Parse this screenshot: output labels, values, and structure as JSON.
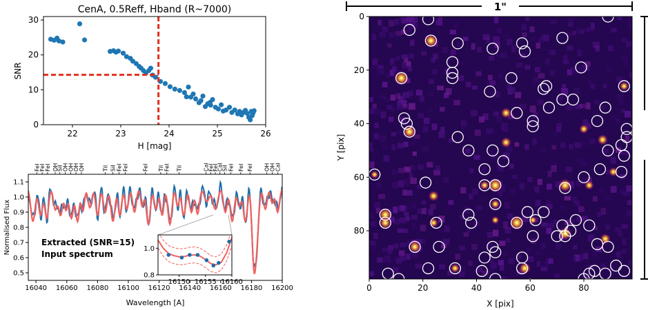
{
  "chart_data": [
    {
      "type": "scatter",
      "title": "CenA, 0.5Reff, Hband (R~7000)",
      "xlabel": "H [mag]",
      "ylabel": "SNR",
      "xlim": [
        21.4,
        26.0
      ],
      "ylim": [
        0,
        31
      ],
      "xticks": [
        "22",
        "23",
        "24",
        "25",
        "26"
      ],
      "yticks": [
        "0",
        "10",
        "20",
        "30"
      ],
      "series": [
        {
          "color": "#1f77b4",
          "points": [
            [
              21.55,
              24.5
            ],
            [
              21.62,
              24.2
            ],
            [
              21.68,
              24.8
            ],
            [
              21.72,
              24.0
            ],
            [
              21.8,
              23.7
            ],
            [
              22.15,
              28.9
            ],
            [
              22.25,
              24.3
            ],
            [
              22.78,
              21.0
            ],
            [
              22.85,
              21.2
            ],
            [
              22.9,
              20.8
            ],
            [
              22.95,
              21.1
            ],
            [
              23.05,
              20.5
            ],
            [
              23.12,
              19.5
            ],
            [
              23.2,
              19.0
            ],
            [
              23.25,
              18.2
            ],
            [
              23.32,
              17.5
            ],
            [
              23.38,
              16.7
            ],
            [
              23.42,
              16.2
            ],
            [
              23.47,
              15.5
            ],
            [
              23.52,
              14.8
            ],
            [
              23.58,
              15.5
            ],
            [
              23.62,
              16.2
            ],
            [
              23.66,
              14.2
            ],
            [
              23.72,
              13.6
            ],
            [
              23.82,
              12.4
            ],
            [
              23.92,
              11.8
            ],
            [
              24.02,
              10.9
            ],
            [
              24.12,
              10.2
            ],
            [
              24.22,
              9.8
            ],
            [
              24.32,
              9.2
            ],
            [
              24.36,
              8.0
            ],
            [
              24.45,
              7.9
            ],
            [
              24.5,
              8.8
            ],
            [
              24.55,
              7.4
            ],
            [
              24.62,
              6.3
            ],
            [
              24.66,
              6.9
            ],
            [
              24.7,
              8.2
            ],
            [
              24.75,
              5.2
            ],
            [
              24.8,
              6.0
            ],
            [
              24.86,
              5.6
            ],
            [
              24.9,
              7.2
            ],
            [
              24.96,
              5.0
            ],
            [
              25.02,
              4.5
            ],
            [
              25.08,
              5.7
            ],
            [
              25.12,
              3.9
            ],
            [
              25.18,
              4.2
            ],
            [
              25.25,
              5.0
            ],
            [
              25.3,
              3.5
            ],
            [
              25.36,
              4.2
            ],
            [
              25.42,
              3.1
            ],
            [
              25.46,
              3.8
            ],
            [
              25.5,
              2.8
            ],
            [
              25.55,
              3.6
            ],
            [
              25.58,
              4.1
            ],
            [
              25.62,
              3.2
            ],
            [
              25.65,
              2.1
            ],
            [
              25.68,
              1.4
            ],
            [
              25.7,
              3.8
            ],
            [
              25.72,
              2.6
            ],
            [
              25.74,
              3.4
            ],
            [
              25.76,
              4.0
            ],
            [
              24.4,
              10.8
            ],
            [
              24.85,
              6.4
            ]
          ]
        }
      ],
      "reference_lines": {
        "x": 23.78,
        "y": 14.3,
        "color": "#e0301e",
        "style": "dashed"
      }
    },
    {
      "type": "line",
      "xlabel": "Wavelength [A]",
      "ylabel": "Normalised Flux",
      "xlim": [
        16035,
        16200
      ],
      "ylim": [
        0.45,
        1.15
      ],
      "xticks": [
        "16040",
        "16060",
        "16080",
        "16100",
        "16120",
        "16140",
        "16160",
        "16180",
        "16200"
      ],
      "yticks": [
        "0.5",
        "0.6",
        "0.7",
        "0.8",
        "0.9",
        "1.0",
        "1.1"
      ],
      "legend": {
        "placement": "lower-left",
        "entries": [
          "Extracted (SNR=15)",
          "Input spectrum"
        ]
      },
      "series": [
        {
          "name": "Extracted (SNR=15)",
          "color": "#1f6ea8"
        },
        {
          "name": "Input spectrum",
          "color": "#f0605e"
        }
      ],
      "line_labels": [
        {
          "l": "FeI",
          "w": 16040.5
        },
        {
          "l": "FeI",
          "w": 16044
        },
        {
          "l": "FeI",
          "w": 16047.5
        },
        {
          "l": "OH",
          "w": 16052.5
        },
        {
          "l": "SiI",
          "w": 16055.5
        },
        {
          "l": "OH",
          "w": 16059
        },
        {
          "l": "OH",
          "w": 16062.5
        },
        {
          "l": "OH",
          "w": 16066
        },
        {
          "l": "OH",
          "w": 16069.5
        },
        {
          "l": "TiI",
          "w": 16085
        },
        {
          "l": "SiI",
          "w": 16090
        },
        {
          "l": "FeI",
          "w": 16094
        },
        {
          "l": "FeI",
          "w": 16098
        },
        {
          "l": "FeI",
          "w": 16111
        },
        {
          "l": "TiI",
          "w": 16121
        },
        {
          "l": "FeI",
          "w": 16125
        },
        {
          "l": "TiI",
          "w": 16133
        },
        {
          "l": "CaI",
          "w": 16150.5
        },
        {
          "l": "FeI",
          "w": 16153.5
        },
        {
          "l": "FeI",
          "w": 16156.5
        },
        {
          "l": "CaI",
          "w": 16159.5
        },
        {
          "l": "SiI",
          "w": 16162.5
        },
        {
          "l": "FeI",
          "w": 16166.5
        },
        {
          "l": "FeI",
          "w": 16173
        },
        {
          "l": "FeI",
          "w": 16179
        },
        {
          "l": "OH",
          "w": 16190
        },
        {
          "l": "OH",
          "w": 16193.5
        },
        {
          "l": "CaI",
          "w": 16197
        }
      ],
      "inset": {
        "xlim": [
          16146,
          16160
        ],
        "ylim": [
          0.8,
          1.1
        ],
        "xticks": [
          "16150",
          "16155",
          "16160"
        ],
        "yticks": [
          "0.8",
          "1.0"
        ],
        "points": [
          [
            16148,
            0.95
          ],
          [
            16150.5,
            0.93
          ],
          [
            16152,
            0.95
          ],
          [
            16153.5,
            0.95
          ],
          [
            16155.2,
            0.91
          ],
          [
            16156.5,
            0.87
          ],
          [
            16157.5,
            0.89
          ],
          [
            16159.5,
            1.05
          ]
        ],
        "line": [
          [
            16146,
            1.06
          ],
          [
            16147,
            1.0
          ],
          [
            16148,
            0.96
          ],
          [
            16149,
            0.945
          ],
          [
            16150,
            0.935
          ],
          [
            16151,
            0.938
          ],
          [
            16152,
            0.948
          ],
          [
            16153,
            0.95
          ],
          [
            16154,
            0.94
          ],
          [
            16155,
            0.915
          ],
          [
            16156,
            0.885
          ],
          [
            16157,
            0.875
          ],
          [
            16158,
            0.895
          ],
          [
            16159,
            0.965
          ],
          [
            16160,
            1.08
          ]
        ]
      }
    },
    {
      "type": "heatmap",
      "xlabel": "X [pix]",
      "ylabel": "Y [pix]",
      "xlim": [
        0,
        98
      ],
      "ylim": [
        98,
        0
      ],
      "xticks": [
        "0",
        "20",
        "40",
        "60",
        "80"
      ],
      "yticks": [
        "0",
        "20",
        "40",
        "60",
        "80"
      ],
      "scale_label": "1\"",
      "right_scale_label": "1\"",
      "bright_sources": [
        [
          12,
          23,
          11
        ],
        [
          23,
          9,
          10
        ],
        [
          15,
          43,
          10
        ],
        [
          6,
          74,
          10
        ],
        [
          6,
          77,
          9
        ],
        [
          47,
          63,
          11
        ],
        [
          55,
          77,
          11
        ],
        [
          73,
          63,
          10
        ],
        [
          73,
          81,
          10
        ],
        [
          17,
          86,
          9
        ],
        [
          58,
          94,
          9
        ],
        [
          51,
          36,
          8
        ],
        [
          51,
          47,
          8
        ],
        [
          24,
          67,
          8
        ],
        [
          87,
          46,
          8
        ],
        [
          95,
          26,
          7
        ],
        [
          80,
          42,
          7
        ],
        [
          88,
          83,
          8
        ],
        [
          47,
          70,
          7
        ],
        [
          24,
          77,
          7
        ],
        [
          32,
          94,
          7
        ],
        [
          2,
          59,
          6
        ],
        [
          43,
          63,
          7
        ],
        [
          91,
          58,
          7
        ],
        [
          47,
          76,
          6
        ],
        [
          82,
          63,
          7
        ],
        [
          61,
          76,
          6
        ]
      ],
      "circles": [
        [
          15,
          5
        ],
        [
          22,
          1
        ],
        [
          23,
          9
        ],
        [
          33,
          10
        ],
        [
          46,
          12
        ],
        [
          57,
          10
        ],
        [
          58,
          13
        ],
        [
          72,
          8
        ],
        [
          89,
          0
        ],
        [
          7,
          96
        ],
        [
          31,
          17
        ],
        [
          31,
          21
        ],
        [
          31,
          23
        ],
        [
          12,
          23
        ],
        [
          53,
          23
        ],
        [
          65,
          27
        ],
        [
          66,
          26
        ],
        [
          79,
          19
        ],
        [
          95,
          26
        ],
        [
          45,
          28
        ],
        [
          55,
          36
        ],
        [
          61,
          39
        ],
        [
          61,
          41
        ],
        [
          67,
          34
        ],
        [
          72,
          31
        ],
        [
          76,
          31
        ],
        [
          88,
          34
        ],
        [
          13,
          38
        ],
        [
          14,
          40
        ],
        [
          15,
          43
        ],
        [
          33,
          45
        ],
        [
          37,
          50
        ],
        [
          46,
          50
        ],
        [
          50,
          54
        ],
        [
          85,
          39
        ],
        [
          96,
          42
        ],
        [
          96,
          45
        ],
        [
          94,
          48
        ],
        [
          95,
          52
        ],
        [
          94,
          58
        ],
        [
          43,
          57
        ],
        [
          2,
          59
        ],
        [
          21,
          62
        ],
        [
          43,
          63
        ],
        [
          47,
          63
        ],
        [
          47,
          70
        ],
        [
          73,
          64
        ],
        [
          80,
          60
        ],
        [
          86,
          57
        ],
        [
          89,
          50
        ],
        [
          6,
          74
        ],
        [
          6,
          77
        ],
        [
          37,
          74
        ],
        [
          25,
          77
        ],
        [
          38,
          77
        ],
        [
          59,
          73
        ],
        [
          62,
          76
        ],
        [
          65,
          73
        ],
        [
          72,
          78
        ],
        [
          75,
          80
        ],
        [
          77,
          76
        ],
        [
          55,
          77
        ],
        [
          61,
          82
        ],
        [
          70,
          82
        ],
        [
          73,
          82
        ],
        [
          82,
          78
        ],
        [
          85,
          85
        ],
        [
          17,
          86
        ],
        [
          26,
          86
        ],
        [
          43,
          90
        ],
        [
          46,
          86
        ],
        [
          47,
          88
        ],
        [
          57,
          90
        ],
        [
          57,
          94
        ],
        [
          42,
          95
        ],
        [
          32,
          94
        ],
        [
          22,
          94
        ],
        [
          92,
          93
        ],
        [
          95,
          95
        ],
        [
          89,
          86
        ],
        [
          84,
          95
        ],
        [
          88,
          96
        ],
        [
          82,
          96
        ],
        [
          47,
          98
        ],
        [
          11,
          98
        ],
        [
          80,
          98
        ],
        [
          60,
          100
        ]
      ]
    }
  ]
}
